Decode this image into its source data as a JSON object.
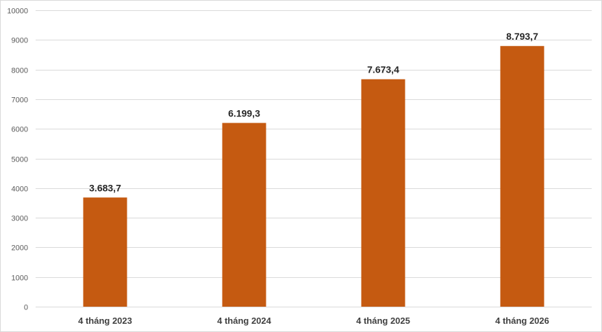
{
  "chart_data": {
    "type": "bar",
    "categories": [
      "4 tháng 2023",
      "4 tháng 2024",
      "4 tháng 2025",
      "4 tháng 2026"
    ],
    "values": [
      3683.7,
      6199.3,
      7673.4,
      8793.7
    ],
    "data_labels": [
      "3.683,7",
      "6.199,3",
      "7.673,4",
      "8.793,7"
    ],
    "yticks": [
      0,
      1000,
      2000,
      3000,
      4000,
      5000,
      6000,
      7000,
      8000,
      9000,
      10000
    ],
    "ylim": [
      0,
      10000
    ],
    "title": "",
    "xlabel": "",
    "ylabel": "",
    "grid": true,
    "legend": "none",
    "bar_color": "#c55a11"
  }
}
